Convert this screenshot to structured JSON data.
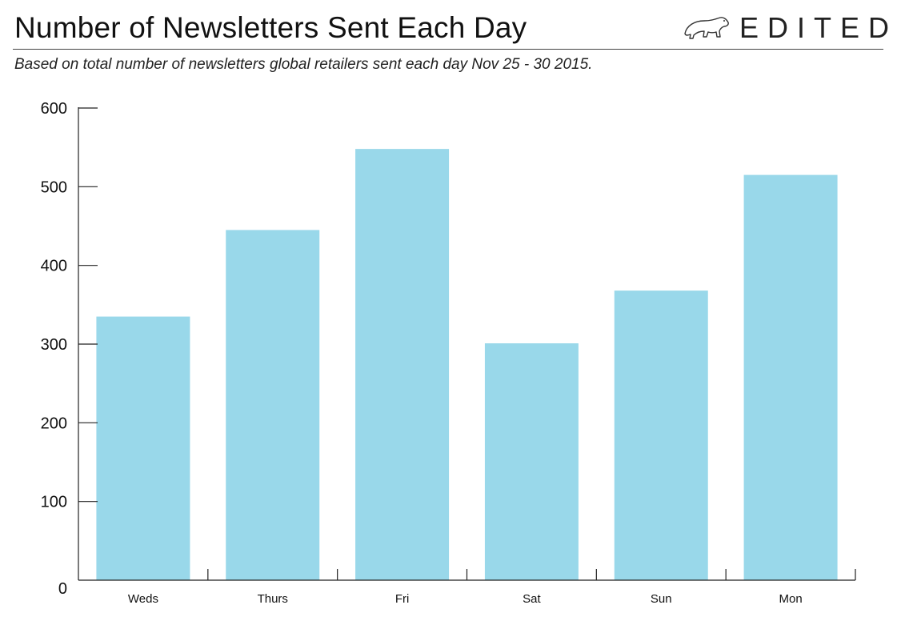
{
  "header": {
    "title": "Number of Newsletters Sent Each Day",
    "subtitle": "Based on total number of newsletters global retailers sent each day Nov 25 - 30 2015.",
    "brand": "EDITED"
  },
  "colors": {
    "bar": "#99d8ea",
    "axis": "#222222",
    "text": "#111111"
  },
  "icons": {
    "brand_logo": "polar-bear-icon"
  },
  "chart_data": {
    "type": "bar",
    "title": "Number of Newsletters Sent Each Day",
    "categories": [
      "Weds",
      "Thurs",
      "Fri",
      "Sat",
      "Sun",
      "Mon"
    ],
    "values": [
      335,
      445,
      548,
      301,
      368,
      515
    ],
    "xlabel": "",
    "ylabel": "",
    "ylim": [
      0,
      600
    ],
    "yticks": [
      0,
      100,
      200,
      300,
      400,
      500,
      600
    ],
    "grid": false,
    "legend": "none"
  }
}
